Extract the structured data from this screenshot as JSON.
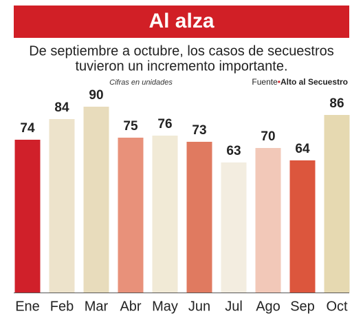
{
  "chart_data": {
    "type": "bar",
    "title": "Al alza",
    "subtitle": [
      "De septiembre a octubre, los casos de secuestros",
      "tuvieron un incremento importante."
    ],
    "note": "Cifras en unidades",
    "source_label": "Fuente",
    "source": "Alto al Secuestro",
    "categories": [
      "Ene",
      "Feb",
      "Mar",
      "Abr",
      "May",
      "Jun",
      "Jul",
      "Ago",
      "Sep",
      "Oct"
    ],
    "values": [
      74,
      84,
      90,
      75,
      76,
      73,
      63,
      70,
      64,
      86
    ],
    "colors": [
      "#d0202a",
      "#ede3cb",
      "#e8dcbc",
      "#e8917a",
      "#f1ead6",
      "#e07a60",
      "#f3ede0",
      "#f2c8b8",
      "#dc563d",
      "#e6d9b1"
    ],
    "ylim": [
      0,
      100
    ]
  }
}
